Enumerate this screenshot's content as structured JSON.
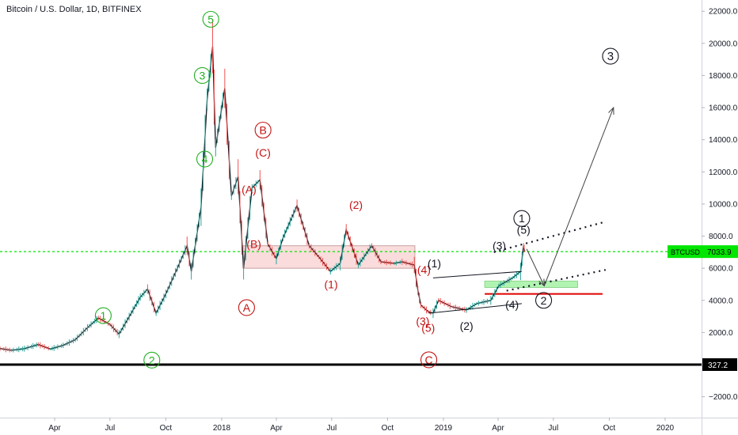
{
  "header": {
    "title": "Bitcoin / U.S. Dollar, 1D, BITFINEX"
  },
  "chart_data": {
    "type": "line",
    "title": "Bitcoin / U.S. Dollar, 1D, BITFINEX",
    "xlabel": "",
    "ylabel": "",
    "xlim": [
      "2017-01-01",
      "2020-03-01"
    ],
    "ylim": [
      -3300,
      22700
    ],
    "y_ticks": [
      -2000,
      2000,
      4000,
      6000,
      8000,
      10000,
      12000,
      14000,
      16000,
      18000,
      20000,
      22000
    ],
    "y_tick_labels": [
      "−2000.0",
      "2000.0",
      "4000.0",
      "6000.0",
      "8000.0",
      "10000.0",
      "12000.0",
      "14000.0",
      "16000.0",
      "18000.0",
      "20000.0",
      "22000.0"
    ],
    "x_ticks": [
      {
        "x": "2017-04-01",
        "label": "Apr"
      },
      {
        "x": "2017-07-01",
        "label": "Jul"
      },
      {
        "x": "2017-10-01",
        "label": "Oct"
      },
      {
        "x": "2018-01-01",
        "label": "2018"
      },
      {
        "x": "2018-04-01",
        "label": "Apr"
      },
      {
        "x": "2018-07-01",
        "label": "Jul"
      },
      {
        "x": "2018-10-01",
        "label": "Oct"
      },
      {
        "x": "2019-01-01",
        "label": "2019"
      },
      {
        "x": "2019-04-01",
        "label": "Apr"
      },
      {
        "x": "2019-07-01",
        "label": "Jul"
      },
      {
        "x": "2019-10-01",
        "label": "Oct"
      },
      {
        "x": "2020-01-01",
        "label": "2020"
      }
    ],
    "colors": {
      "up": "#26a69a",
      "down": "#ef5350",
      "green_wave": "#22b022",
      "red_wave": "#c41414",
      "black_wave": "#131722",
      "price_line": "#00e600",
      "zone_fill": "#f5c0c0",
      "zone_green": "#90ee90"
    },
    "series": [
      {
        "points": [
          [
            "2017-01-01",
            1000
          ],
          [
            "2017-01-20",
            890
          ],
          [
            "2017-02-10",
            990
          ],
          [
            "2017-03-05",
            1250
          ],
          [
            "2017-03-25",
            970
          ],
          [
            "2017-04-15",
            1200
          ],
          [
            "2017-05-05",
            1550
          ],
          [
            "2017-05-25",
            2300
          ],
          [
            "2017-06-12",
            2900
          ],
          [
            "2017-07-01",
            2500
          ],
          [
            "2017-07-16",
            1900
          ],
          [
            "2017-08-05",
            3200
          ],
          [
            "2017-08-20",
            4200
          ],
          [
            "2017-09-01",
            4700
          ],
          [
            "2017-09-15",
            3200
          ],
          [
            "2017-10-01",
            4400
          ],
          [
            "2017-10-20",
            6000
          ],
          [
            "2017-11-05",
            7400
          ],
          [
            "2017-11-12",
            5800
          ],
          [
            "2017-11-28",
            9800
          ],
          [
            "2017-12-08",
            16500
          ],
          [
            "2017-12-17",
            19800
          ],
          [
            "2017-12-22",
            13500
          ],
          [
            "2018-01-06",
            17200
          ],
          [
            "2018-01-17",
            10500
          ],
          [
            "2018-01-28",
            11700
          ],
          [
            "2018-02-06",
            6000
          ],
          [
            "2018-02-20",
            11000
          ],
          [
            "2018-03-05",
            11500
          ],
          [
            "2018-03-18",
            7500
          ],
          [
            "2018-04-01",
            6600
          ],
          [
            "2018-04-12",
            7900
          ],
          [
            "2018-05-05",
            9900
          ],
          [
            "2018-05-25",
            7400
          ],
          [
            "2018-06-10",
            6700
          ],
          [
            "2018-06-29",
            5800
          ],
          [
            "2018-07-15",
            6300
          ],
          [
            "2018-07-25",
            8400
          ],
          [
            "2018-08-14",
            6200
          ],
          [
            "2018-09-05",
            7400
          ],
          [
            "2018-09-20",
            6400
          ],
          [
            "2018-10-12",
            6300
          ],
          [
            "2018-10-25",
            6400
          ],
          [
            "2018-11-14",
            6200
          ],
          [
            "2018-11-20",
            4600
          ],
          [
            "2018-11-25",
            3700
          ],
          [
            "2018-12-07",
            3300
          ],
          [
            "2018-12-15",
            3200
          ],
          [
            "2018-12-24",
            4000
          ],
          [
            "2019-01-15",
            3600
          ],
          [
            "2019-02-08",
            3400
          ],
          [
            "2019-02-25",
            3800
          ],
          [
            "2019-03-20",
            4000
          ],
          [
            "2019-04-02",
            4900
          ],
          [
            "2019-04-25",
            5400
          ],
          [
            "2019-05-08",
            5800
          ],
          [
            "2019-05-13",
            7400
          ],
          [
            "2019-05-15",
            7034
          ]
        ]
      }
    ],
    "current_price": {
      "label": "BTCUSD",
      "value": "7033.9",
      "y": 7034
    },
    "support_line": {
      "value": "327.2",
      "y": 0
    },
    "zones": [
      {
        "x1": "2018-02-05",
        "x2": "2018-11-15",
        "y1": 6000,
        "y2": 7400
      },
      {
        "x1": "2019-03-10",
        "x2": "2019-08-10",
        "y1": 4800,
        "y2": 5200
      }
    ],
    "wave_labels": [
      {
        "text": "5",
        "style": "circle",
        "color": "green_wave",
        "x": "2017-12-14",
        "y": 21500
      },
      {
        "text": "3",
        "style": "circle",
        "color": "green_wave",
        "x": "2017-11-30",
        "y": 18000
      },
      {
        "text": "4",
        "style": "circle",
        "color": "green_wave",
        "x": "2017-12-04",
        "y": 12800
      },
      {
        "text": "1",
        "style": "circle",
        "color": "green_wave",
        "x": "2017-06-20",
        "y": 3050
      },
      {
        "text": "2",
        "style": "circle",
        "color": "green_wave",
        "x": "2017-09-08",
        "y": 280
      },
      {
        "text": "B",
        "style": "circle",
        "color": "red_wave",
        "x": "2018-03-10",
        "y": 14600
      },
      {
        "text": "(C)",
        "style": "plain",
        "color": "red_wave",
        "x": "2018-03-10",
        "y": 13200
      },
      {
        "text": "(A)",
        "style": "plain",
        "color": "red_wave",
        "x": "2018-02-15",
        "y": 10900
      },
      {
        "text": "(B)",
        "style": "plain",
        "color": "red_wave",
        "x": "2018-02-23",
        "y": 7500
      },
      {
        "text": "A",
        "style": "circle",
        "color": "red_wave",
        "x": "2018-02-11",
        "y": 3550
      },
      {
        "text": "(2)",
        "style": "plain",
        "color": "red_wave",
        "x": "2018-08-10",
        "y": 9950
      },
      {
        "text": "(1)",
        "style": "plain",
        "color": "red_wave",
        "x": "2018-06-30",
        "y": 5000
      },
      {
        "text": "(4)",
        "style": "plain",
        "color": "red_wave",
        "x": "2018-11-30",
        "y": 5900
      },
      {
        "text": "(3)",
        "style": "plain",
        "color": "red_wave",
        "x": "2018-11-28",
        "y": 2700
      },
      {
        "text": "(5)",
        "style": "plain",
        "color": "red_wave",
        "x": "2018-12-07",
        "y": 2300
      },
      {
        "text": "C",
        "style": "circle",
        "color": "red_wave",
        "x": "2018-12-08",
        "y": 300
      },
      {
        "text": "(1)",
        "style": "plain",
        "color": "black_wave",
        "x": "2018-12-17",
        "y": 6300
      },
      {
        "text": "(2)",
        "style": "plain",
        "color": "black_wave",
        "x": "2019-02-08",
        "y": 2400
      },
      {
        "text": "(3)",
        "style": "plain",
        "color": "black_wave",
        "x": "2019-04-03",
        "y": 7400
      },
      {
        "text": "(4)",
        "style": "plain",
        "color": "black_wave",
        "x": "2019-04-24",
        "y": 3750
      },
      {
        "text": "1",
        "style": "circle",
        "color": "black_wave",
        "x": "2019-05-10",
        "y": 9100
      },
      {
        "text": "(5)",
        "style": "plain",
        "color": "black_wave",
        "x": "2019-05-13",
        "y": 8400
      },
      {
        "text": "2",
        "style": "circle",
        "color": "black_wave",
        "x": "2019-06-15",
        "y": 4000
      },
      {
        "text": "3",
        "style": "circle",
        "color": "black_wave",
        "x": "2019-10-03",
        "y": 19200
      }
    ]
  }
}
